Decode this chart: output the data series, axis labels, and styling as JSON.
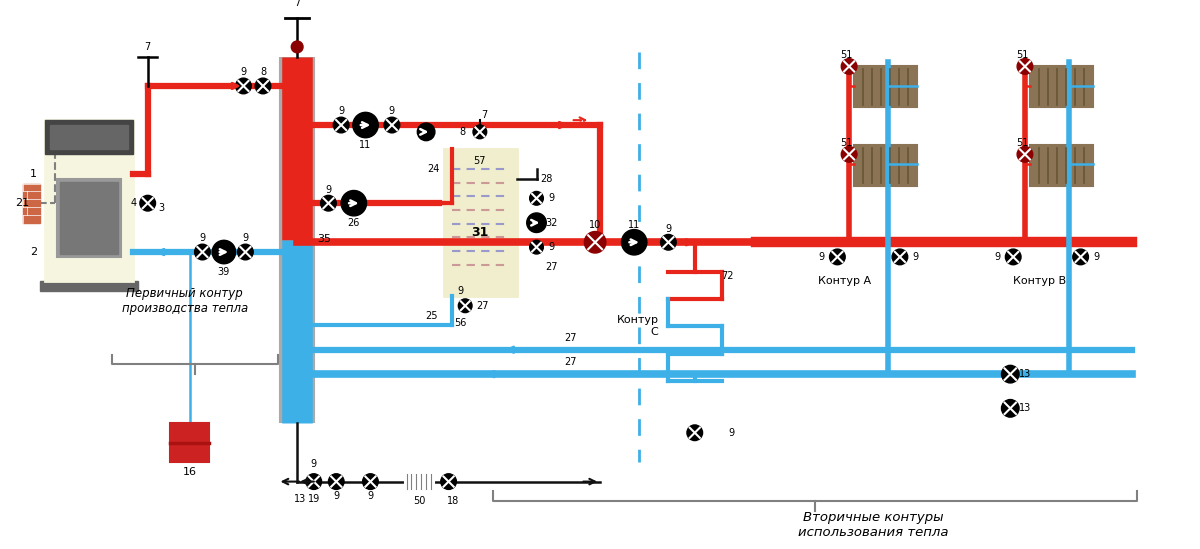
{
  "bg_color": "#ffffff",
  "red": "#e8251a",
  "blue": "#3db0e8",
  "blue2": "#5bc8f0",
  "black": "#111111",
  "gray": "#888888",
  "boiler_fill": "#f5f5e0",
  "boiler_border": "#555555",
  "boiler_panel": "#444444",
  "boiler_firebox": "#999999",
  "tank_fill": "#cc2222",
  "hx_fill": "#f0eecc",
  "hx_border": "#333333",
  "rad_fill": "#8B7355",
  "rad_dark": "#665533",
  "sep_gray": "#999999",
  "chimney_fill": "#cc6644",
  "text_primary": "Первичный контур\nпроизводства тепла",
  "text_secondary": "Вторичные контуры\nиспользования тепла",
  "text_kontA": "Контур А",
  "text_kontB": "Контур В",
  "text_kontC": "Контур\nС"
}
